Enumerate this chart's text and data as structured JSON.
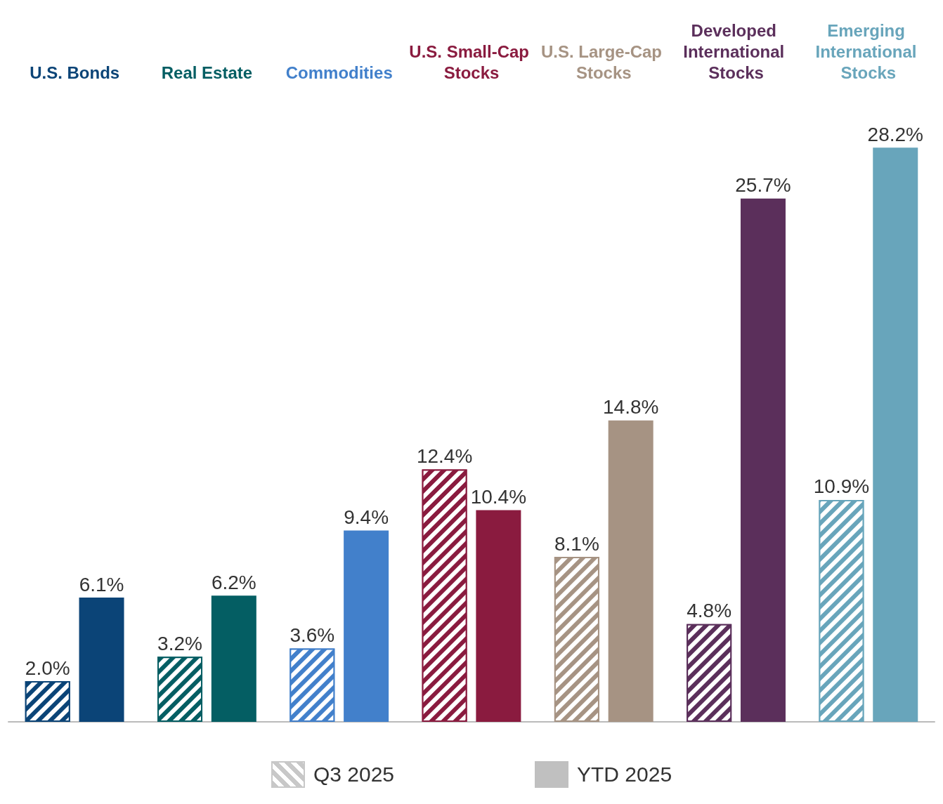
{
  "chart_data": {
    "type": "bar",
    "categories": [
      "U.S. Bonds",
      "Real Estate",
      "Commodities",
      "U.S. Small-Cap Stocks",
      "U.S. Large-Cap Stocks",
      "Developed International Stocks",
      "Emerging International Stocks"
    ],
    "series": [
      {
        "name": "Q3 2025",
        "color": "#c8c8c8",
        "colors": [
          "#0b4477",
          "#045e63",
          "#4280cb",
          "#8a1b3f",
          "#a69383",
          "#5b2f5b",
          "#68a5bb"
        ],
        "values": [
          2.0,
          3.2,
          3.6,
          12.4,
          8.1,
          4.8,
          10.9
        ],
        "value_labels": [
          "2.0%",
          "3.2%",
          "3.6%",
          "12.4%",
          "8.1%",
          "4.8%",
          "10.9%"
        ]
      },
      {
        "name": "YTD 2025",
        "color": "#c0c0c0",
        "colors": [
          "#0b4477",
          "#045e63",
          "#4280cb",
          "#8a1b3f",
          "#a69383",
          "#5b2f5b",
          "#68a5bb"
        ],
        "values": [
          6.1,
          6.2,
          9.4,
          10.4,
          14.8,
          25.7,
          28.2
        ],
        "value_labels": [
          "6.1%",
          "6.2%",
          "9.4%",
          "10.4%",
          "14.8%",
          "25.7%",
          "28.2%"
        ]
      }
    ],
    "legend": "bottom"
  }
}
